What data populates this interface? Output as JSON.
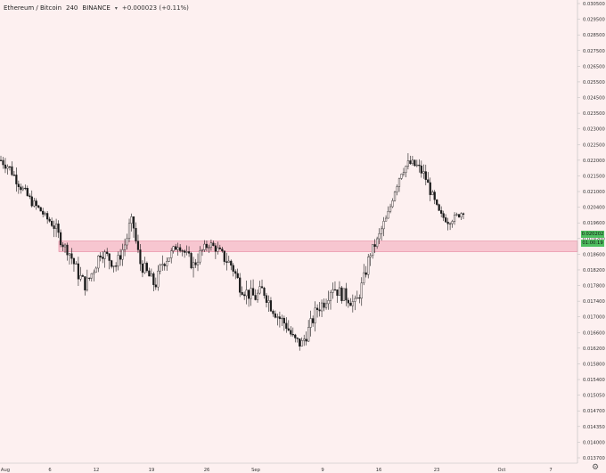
{
  "header": {
    "symbol": "Ethereum / Bitcoin",
    "interval": "240",
    "exchange": "BINANCE",
    "change": "+0.000023 (+0.11%)"
  },
  "price_labels": {
    "last_price": "0.020202",
    "countdown": "01:00:19"
  },
  "colors": {
    "background": "#fdf0f0",
    "candle": "#1a1a1a",
    "zone_fill": "#f7c6d0",
    "zone_stroke": "#e06a8a",
    "price_label": "#4fbf60"
  },
  "icons": {
    "settings": "gear-icon",
    "symbol_menu": "chevron-down-icon"
  },
  "chart_data": {
    "type": "candlestick",
    "y_axis": {
      "range": [
        0.0137,
        0.0305
      ],
      "ticks": [
        "0.030500",
        "0.029500",
        "0.028500",
        "0.027500",
        "0.026500",
        "0.025500",
        "0.024500",
        "0.023500",
        "0.023000",
        "0.022500",
        "0.022000",
        "0.021500",
        "0.021000",
        "0.020400",
        "0.019600",
        "0.019200",
        "0.018600",
        "0.018200",
        "0.017800",
        "0.017400",
        "0.017000",
        "0.016600",
        "0.016200",
        "0.015800",
        "0.015400",
        "0.015050",
        "0.014700",
        "0.014350",
        "0.014000",
        "0.013700"
      ]
    },
    "x_axis": {
      "ticks": [
        "Aug",
        "6",
        "12",
        "19",
        "26",
        "Sep",
        "9",
        "16",
        "23",
        "Oct",
        "7"
      ]
    },
    "support_zone": {
      "low": 0.0187,
      "high": 0.0191
    },
    "close_series": [
      0.022,
      0.0218,
      0.0214,
      0.021,
      0.0206,
      0.0203,
      0.0198,
      0.0195,
      0.019,
      0.0186,
      0.0181,
      0.0178,
      0.0182,
      0.0187,
      0.0185,
      0.0183,
      0.0189,
      0.0198,
      0.0184,
      0.0181,
      0.0178,
      0.0184,
      0.0186,
      0.019,
      0.0186,
      0.0183,
      0.0187,
      0.019,
      0.0188,
      0.0185,
      0.0183,
      0.0178,
      0.0176,
      0.0175,
      0.0177,
      0.0173,
      0.017,
      0.0168,
      0.0164,
      0.0163,
      0.0167,
      0.0172,
      0.0174,
      0.0178,
      0.0176,
      0.0175,
      0.0173,
      0.0179,
      0.0187,
      0.0192,
      0.0198,
      0.021,
      0.0217,
      0.0219,
      0.0218,
      0.0215,
      0.0208,
      0.02,
      0.0197,
      0.0199,
      0.0202
    ]
  }
}
